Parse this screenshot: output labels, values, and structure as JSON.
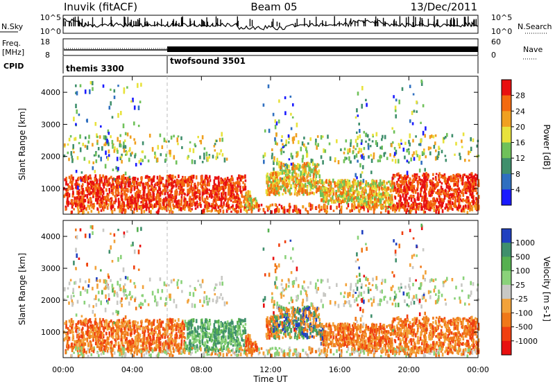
{
  "header": {
    "station": "Inuvik (fitACF)",
    "beam": "Beam 05",
    "date": "13/Dec/2011"
  },
  "chart_data": [
    {
      "id": "noise-panel",
      "type": "line",
      "left_label": "N.Sky",
      "right_label": "N.Search",
      "left_ticks": [
        "10^5",
        "10^0"
      ],
      "right_ticks": [
        "10^5",
        "10^0"
      ]
    },
    {
      "id": "freq-nave-panel",
      "type": "line",
      "left_label_lines": [
        "Freq.",
        "[MHz]"
      ],
      "right_label": "Nave",
      "left_ticks": [
        "18",
        "8"
      ],
      "right_ticks": [
        "60",
        "0"
      ]
    },
    {
      "id": "cpid-strip",
      "type": "table",
      "label": "CPID",
      "segments": [
        {
          "name": "themis 3300",
          "start_h": 0,
          "end_h": 6
        },
        {
          "name": "twofsound 3501",
          "start_h": 6,
          "end_h": 24
        }
      ]
    },
    {
      "id": "power-panel",
      "type": "heatmap",
      "ylabel": "Slant Range [km]",
      "yticks": [
        "1000",
        "2000",
        "3000",
        "4000"
      ],
      "ylim": [
        200,
        4500
      ],
      "xlim": [
        0,
        24
      ],
      "colorbar": {
        "label": "Power [dB]",
        "tick_labels": [
          "4",
          "8",
          "12",
          "16",
          "20",
          "24",
          "28"
        ],
        "colors": [
          "#1a1aff",
          "#2f6fc0",
          "#3f8f6c",
          "#6fc15a",
          "#e8e23c",
          "#f0a020",
          "#f36a10",
          "#e81010"
        ]
      }
    },
    {
      "id": "velocity-panel",
      "type": "heatmap",
      "ylabel": "Slant Range [km]",
      "yticks": [
        "1000",
        "2000",
        "3000",
        "4000"
      ],
      "ylim": [
        200,
        4500
      ],
      "xlim": [
        0,
        24
      ],
      "xlabel": "Time UT",
      "xticks": [
        "00:00",
        "04:00",
        "08:00",
        "12:00",
        "16:00",
        "20:00",
        "00:00"
      ],
      "colorbar": {
        "label": "Velocity [m s-1]",
        "tick_labels": [
          "1000",
          "500",
          "100",
          "25",
          "-25",
          "-100",
          "-500",
          "-1000"
        ],
        "colors": [
          "#2040c0",
          "#3f8f6c",
          "#55b050",
          "#8ad27a",
          "#c8c8c4",
          "#f2a23a",
          "#f07818",
          "#f04010",
          "#e81010"
        ]
      }
    }
  ]
}
